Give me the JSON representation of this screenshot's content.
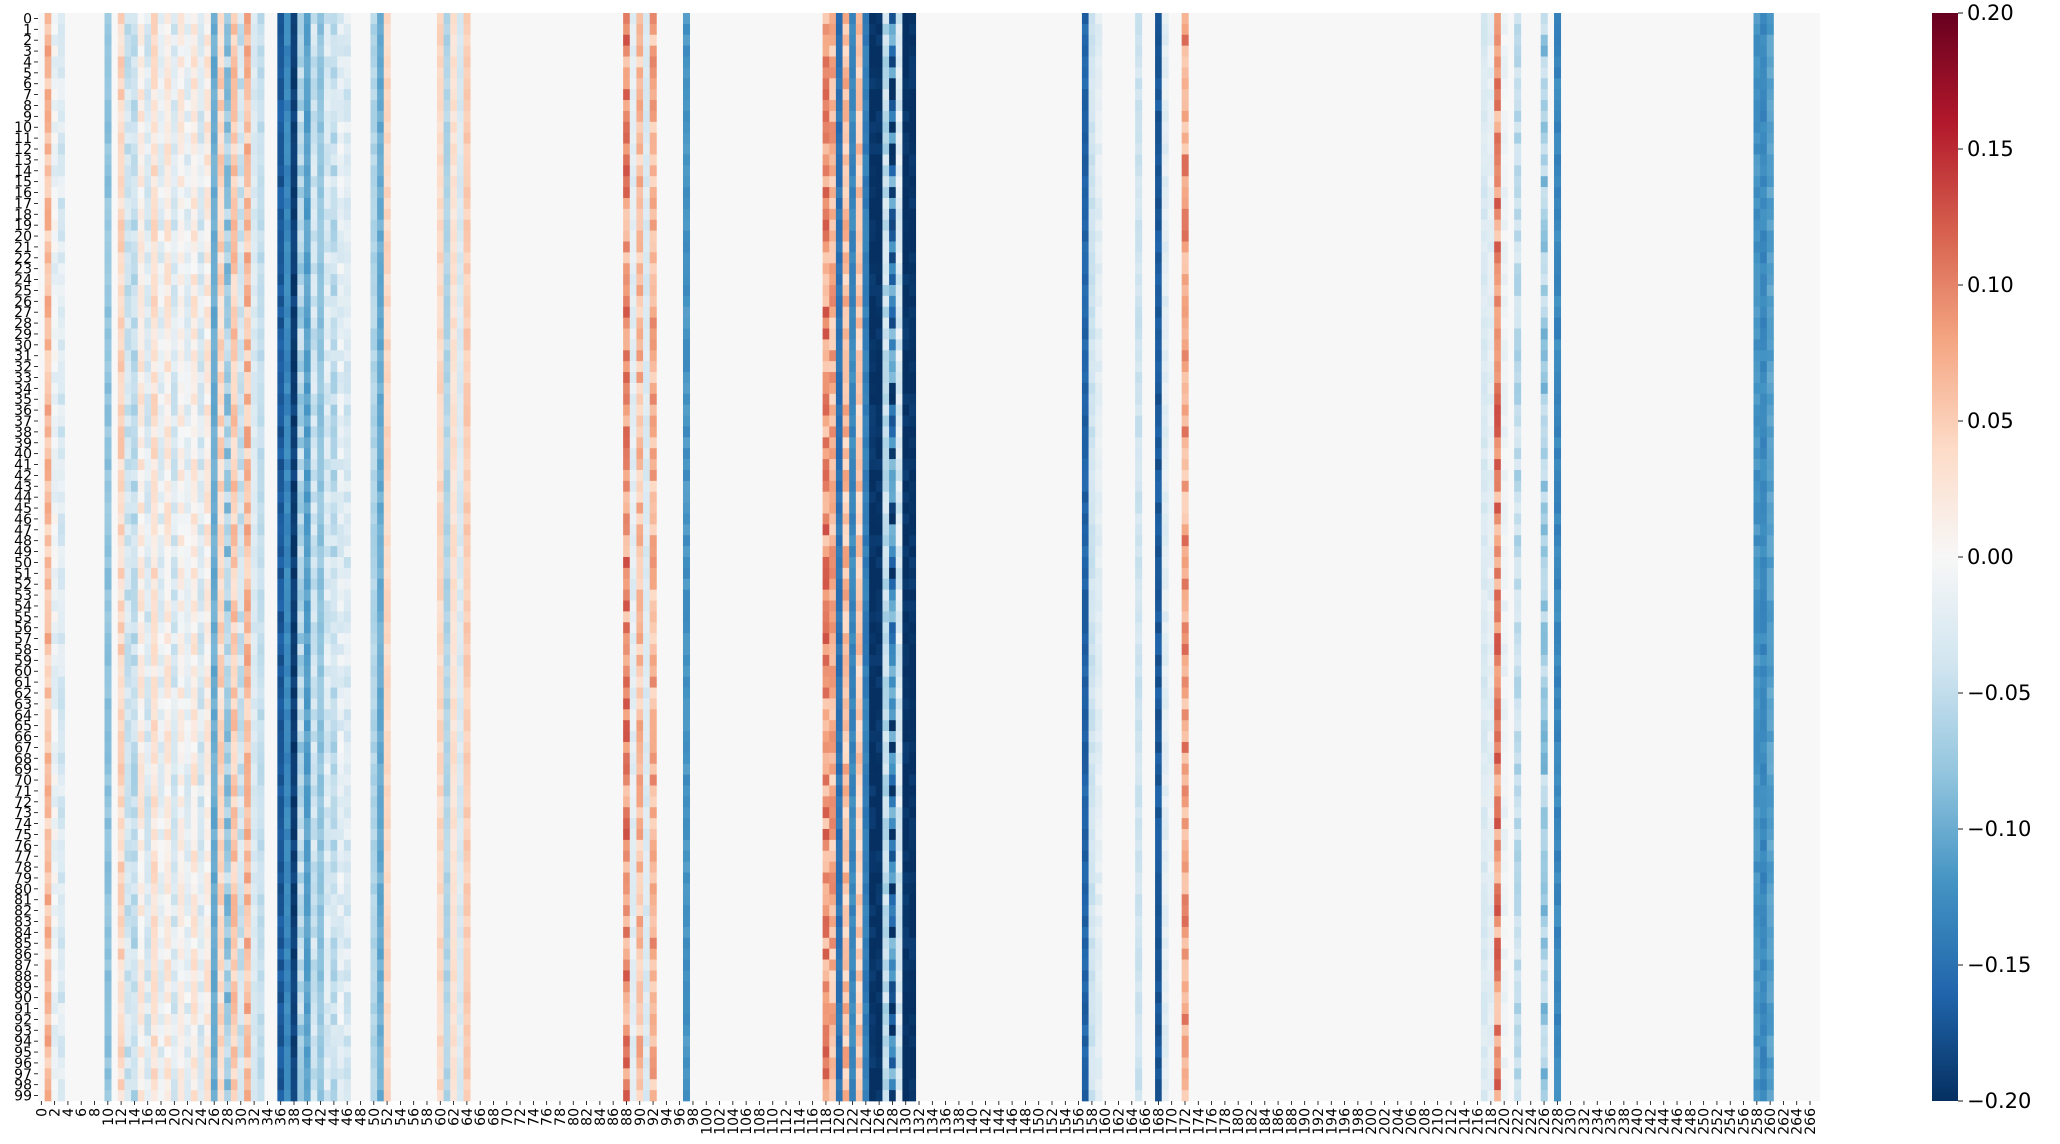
{
  "chart_data": {
    "type": "heatmap",
    "title": "",
    "xlabel": "",
    "ylabel": "",
    "n_rows": 100,
    "n_cols": 268,
    "background_value": 0.0,
    "colormap": "RdBu_r",
    "color_range": [
      -0.2,
      0.2
    ],
    "colors": {
      "neg_max": "#053061",
      "zero": "#f7f7f7",
      "pos_max": "#67001f"
    },
    "row_labels_every": 1,
    "col_labels_every": 2,
    "colorbar_ticks": [
      "-0.20",
      "-0.15",
      "-0.10",
      "-0.05",
      "0.00",
      "0.05",
      "0.10",
      "0.15",
      "0.20"
    ],
    "column_means": {
      "1": 0.06,
      "2": -0.01,
      "3": -0.03,
      "10": -0.08,
      "12": 0.04,
      "13": -0.04,
      "14": -0.05,
      "15": 0.02,
      "16": -0.03,
      "17": 0.03,
      "18": -0.02,
      "19": 0.02,
      "20": -0.03,
      "21": 0.01,
      "22": -0.02,
      "23": 0.02,
      "24": -0.03,
      "25": 0.02,
      "26": -0.1,
      "27": 0.04,
      "28": -0.07,
      "29": 0.05,
      "30": -0.04,
      "31": 0.06,
      "32": -0.03,
      "33": -0.05,
      "36": -0.17,
      "37": -0.13,
      "38": -0.19,
      "39": -0.06,
      "40": -0.11,
      "41": -0.04,
      "42": -0.08,
      "43": -0.03,
      "44": -0.05,
      "45": -0.02,
      "46": -0.03,
      "50": -0.06,
      "51": -0.1,
      "52": 0.04,
      "60": 0.04,
      "61": -0.06,
      "62": 0.03,
      "63": -0.03,
      "64": 0.05,
      "88": 0.09,
      "89": -0.02,
      "90": 0.06,
      "91": -0.03,
      "92": 0.07,
      "97": -0.12,
      "118": 0.09,
      "119": 0.07,
      "120": -0.15,
      "121": 0.06,
      "122": -0.13,
      "123": 0.05,
      "124": -0.14,
      "125": -0.2,
      "126": -0.2,
      "127": -0.05,
      "128": -0.15,
      "129": -0.03,
      "130": -0.2,
      "131": -0.2,
      "157": -0.16,
      "158": -0.04,
      "159": -0.02,
      "165": -0.04,
      "168": -0.17,
      "169": -0.02,
      "172": 0.08,
      "217": -0.03,
      "218": -0.02,
      "219": 0.09,
      "220": -0.01,
      "222": -0.05,
      "226": -0.07,
      "228": -0.13,
      "258": -0.12,
      "259": -0.13,
      "260": -0.11
    },
    "noise_columns": [
      1,
      2,
      3,
      12,
      13,
      14,
      15,
      16,
      17,
      18,
      19,
      20,
      21,
      22,
      23,
      24,
      25,
      27,
      28,
      29,
      30,
      31,
      39,
      41,
      43,
      44,
      45,
      46,
      88,
      90,
      92,
      118,
      119,
      121,
      123,
      127,
      128,
      129,
      172,
      219,
      222,
      226
    ]
  }
}
